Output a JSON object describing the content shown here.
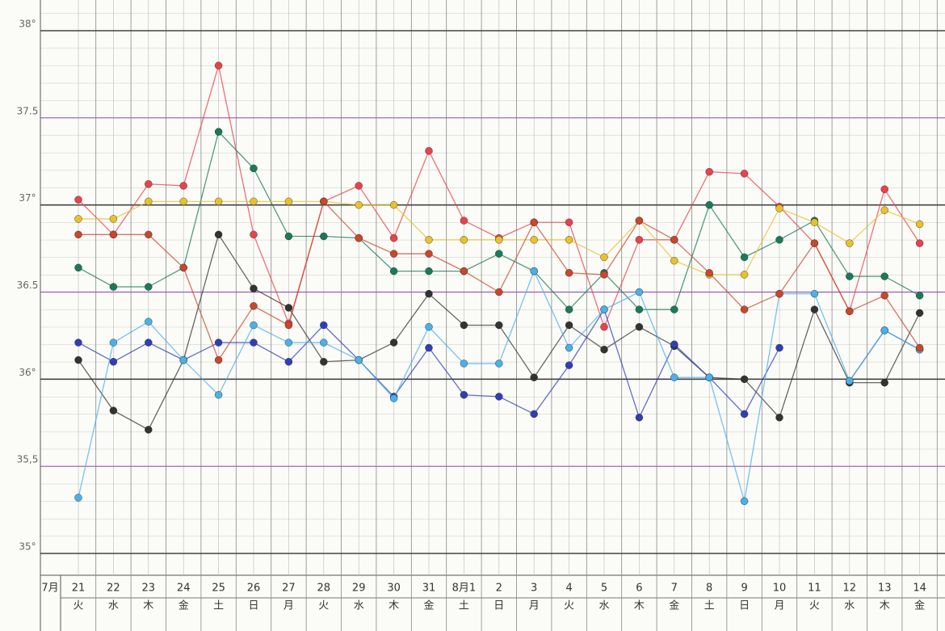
{
  "chart_data": {
    "type": "line",
    "month_label": "7月",
    "categories": [
      "21",
      "22",
      "23",
      "24",
      "25",
      "26",
      "27",
      "28",
      "29",
      "30",
      "31",
      "8月1",
      "2",
      "3",
      "4",
      "5",
      "6",
      "7",
      "8",
      "9",
      "10",
      "11",
      "12",
      "13",
      "14"
    ],
    "weekdays": [
      "火",
      "水",
      "木",
      "金",
      "土",
      "日",
      "月",
      "火",
      "水",
      "木",
      "金",
      "土",
      "日",
      "月",
      "火",
      "水",
      "木",
      "金",
      "土",
      "日",
      "月",
      "火",
      "水",
      "木",
      "金"
    ],
    "ylim": [
      35,
      38
    ],
    "yticks": [
      {
        "value": 35,
        "label": "35°"
      },
      {
        "value": 35.5,
        "label": "35,5"
      },
      {
        "value": 36,
        "label": "36°"
      },
      36.5,
      {
        "value": 37,
        "label": "37°"
      },
      37.5,
      {
        "value": 38,
        "label": "38°"
      }
    ],
    "grid": true,
    "series": [
      {
        "color": "#e8424a",
        "values": [
          37.03,
          36.83,
          37.12,
          37.11,
          37.8,
          36.83,
          36.32,
          37.02,
          37.11,
          36.81,
          37.31,
          36.91,
          36.81,
          36.9,
          36.9,
          36.3,
          36.8,
          36.8,
          37.19,
          37.18,
          36.99,
          36.78,
          36.39,
          37.09,
          36.78
        ]
      },
      {
        "color": "#1a7a5a",
        "values": [
          36.64,
          36.53,
          36.53,
          36.64,
          37.42,
          37.21,
          36.82,
          36.82,
          36.81,
          36.62,
          36.62,
          36.62,
          36.72,
          36.62,
          36.4,
          36.61,
          36.4,
          36.4,
          37.0,
          36.7,
          36.8,
          36.91,
          36.59,
          36.59,
          36.48
        ]
      },
      {
        "color": "#333333",
        "values": [
          36.11,
          35.82,
          35.71,
          36.11,
          36.83,
          36.52,
          36.41,
          36.1,
          36.11,
          36.21,
          36.49,
          36.31,
          36.31,
          36.01,
          36.31,
          36.17,
          36.3,
          36.19,
          36.01,
          36.0,
          35.78,
          36.4,
          35.98,
          35.98,
          36.38
        ]
      },
      {
        "color": "#2f3fb5",
        "values": [
          36.21,
          36.1,
          36.21,
          36.11,
          36.21,
          36.21,
          36.1,
          36.31,
          36.11,
          35.9,
          36.18,
          35.91,
          35.9,
          35.8,
          36.08,
          36.4,
          35.78,
          36.2,
          36.01,
          35.8,
          36.18,
          null,
          35.99,
          36.28,
          36.17
        ]
      },
      {
        "color": "#4ab0e8",
        "values": [
          35.32,
          36.21,
          36.33,
          36.11,
          35.91,
          36.31,
          36.21,
          36.21,
          36.11,
          35.89,
          36.3,
          36.09,
          36.09,
          36.62,
          36.18,
          36.4,
          36.5,
          36.01,
          36.01,
          35.3,
          36.49,
          36.49,
          35.99,
          36.28,
          36.17
        ]
      },
      {
        "color": "#e8c22a",
        "values": [
          36.92,
          36.92,
          37.02,
          37.02,
          37.02,
          37.02,
          37.02,
          37.02,
          37.0,
          37.0,
          36.8,
          36.8,
          36.8,
          36.8,
          36.8,
          36.7,
          36.91,
          36.68,
          36.6,
          36.6,
          36.98,
          36.9,
          36.78,
          36.97,
          36.89
        ]
      },
      {
        "color": "#c9472b",
        "values": [
          36.83,
          36.83,
          36.83,
          36.64,
          36.11,
          36.42,
          36.31,
          37.02,
          36.81,
          36.72,
          36.72,
          36.62,
          36.5,
          36.9,
          36.61,
          36.6,
          36.91,
          36.8,
          36.61,
          36.4,
          36.49,
          36.78,
          36.39,
          36.48,
          36.18
        ]
      }
    ]
  }
}
